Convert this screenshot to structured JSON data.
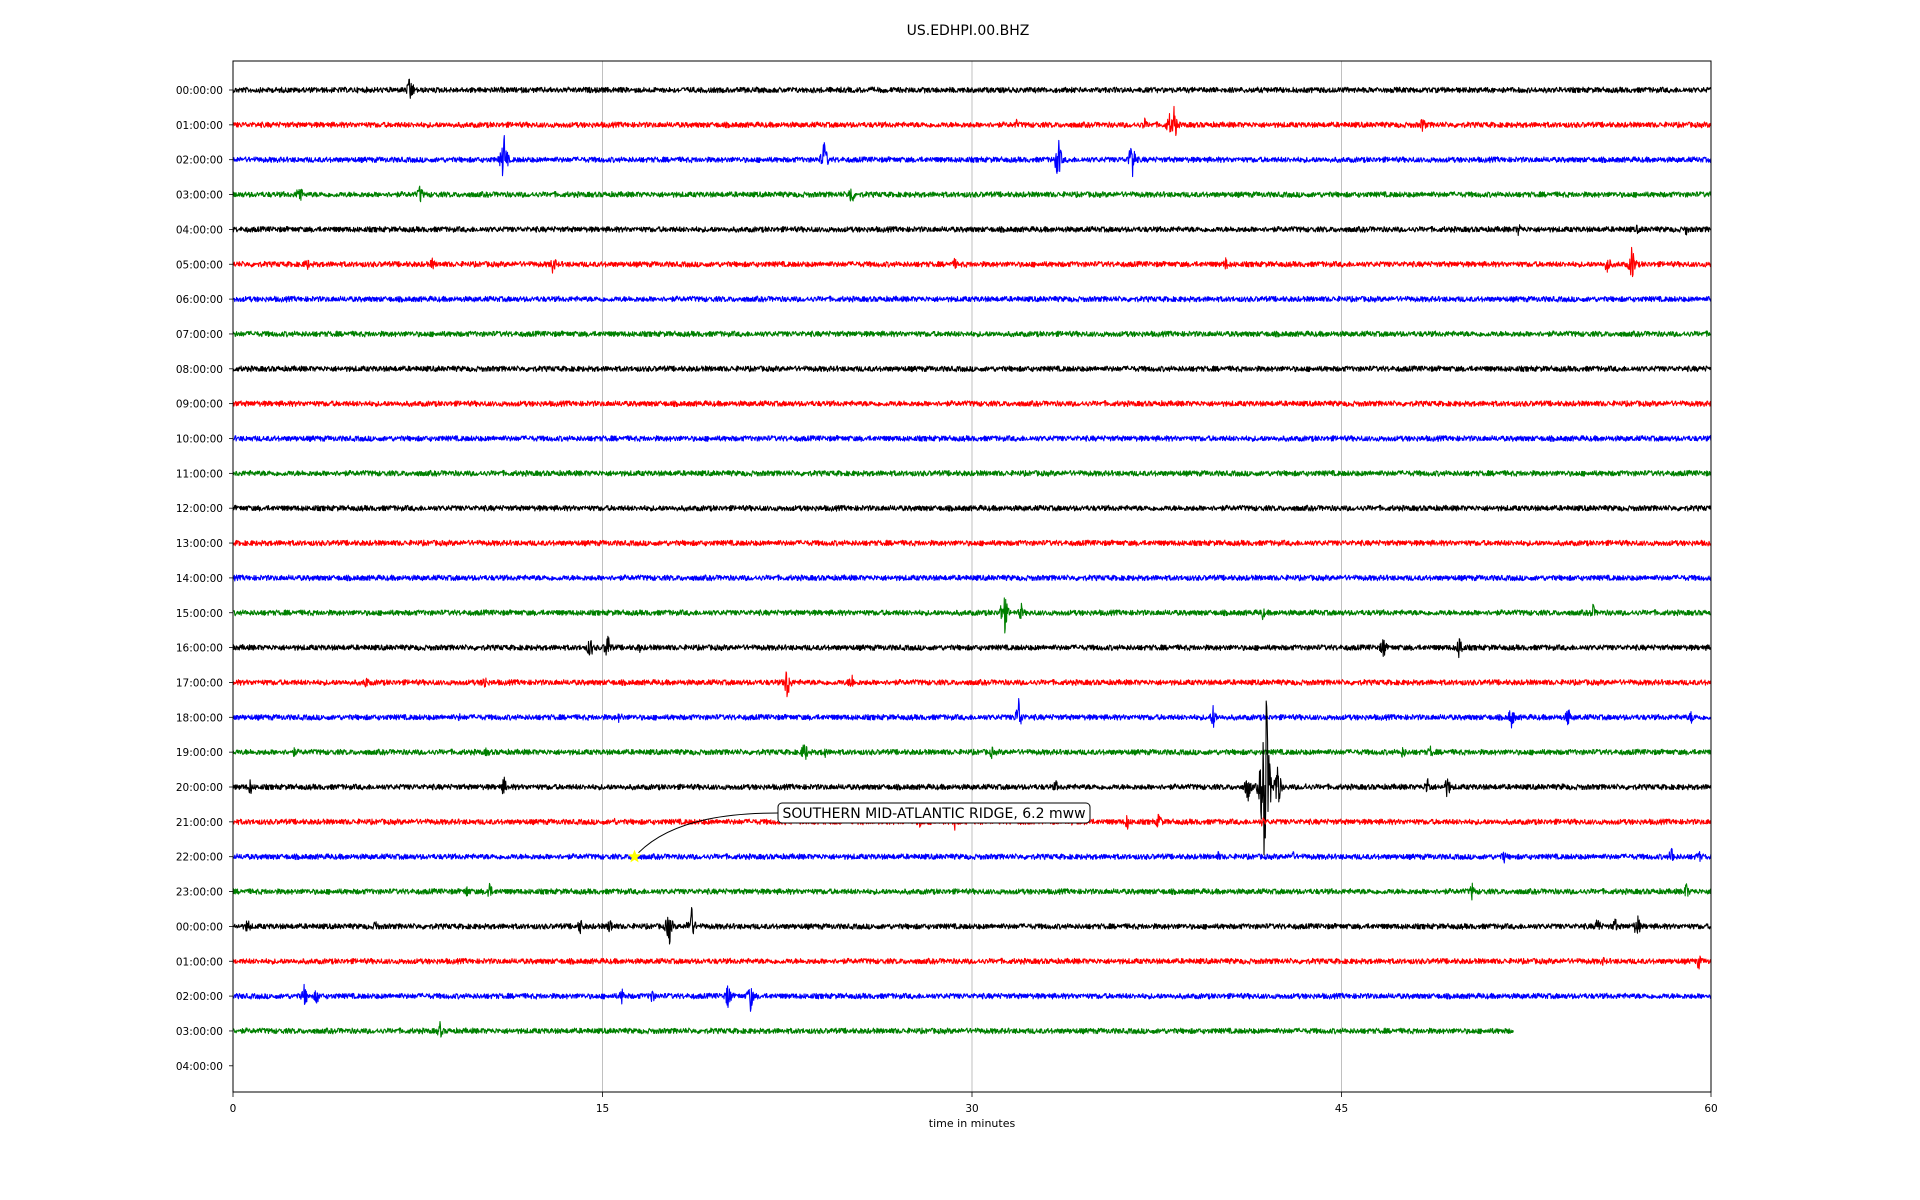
{
  "chart_data": {
    "type": "line",
    "title": "US.EDHPI.00.BHZ",
    "xlabel": "time in minutes",
    "ylabel": "",
    "xlim": [
      0,
      60
    ],
    "x_ticks": [
      "0",
      "15",
      "30",
      "45",
      "60"
    ],
    "x_tick_values": [
      0,
      15,
      30,
      45,
      60
    ],
    "grid": "vertical at 15-minute ticks",
    "trace_colors": [
      "#000000",
      "#ff0000",
      "#0000ff",
      "#008000"
    ],
    "rows": [
      {
        "label": "00:00:00",
        "end": 60,
        "events": [
          [
            7.2,
            18
          ]
        ]
      },
      {
        "label": "01:00:00",
        "end": 60,
        "events": [
          [
            38.2,
            22
          ],
          [
            38.0,
            14
          ],
          [
            37.0,
            8
          ],
          [
            48.3,
            10
          ],
          [
            31.8,
            6
          ]
        ]
      },
      {
        "label": "02:00:00",
        "end": 60,
        "events": [
          [
            11.0,
            30
          ],
          [
            24.0,
            22
          ],
          [
            33.5,
            26
          ],
          [
            36.5,
            26
          ]
        ]
      },
      {
        "label": "03:00:00",
        "end": 60,
        "events": [
          [
            2.7,
            14
          ],
          [
            7.6,
            12
          ],
          [
            25.1,
            14
          ]
        ]
      },
      {
        "label": "04:00:00",
        "end": 60,
        "events": [
          [
            52.2,
            8
          ],
          [
            57.0,
            6
          ],
          [
            59.0,
            7
          ]
        ]
      },
      {
        "label": "05:00:00",
        "end": 60,
        "events": [
          [
            3.0,
            8
          ],
          [
            8.1,
            8
          ],
          [
            13.0,
            12
          ],
          [
            29.3,
            7
          ],
          [
            40.3,
            8
          ],
          [
            55.8,
            12
          ],
          [
            56.8,
            22
          ]
        ]
      },
      {
        "label": "06:00:00",
        "end": 60,
        "events": []
      },
      {
        "label": "07:00:00",
        "end": 60,
        "events": []
      },
      {
        "label": "08:00:00",
        "end": 60,
        "events": []
      },
      {
        "label": "09:00:00",
        "end": 60,
        "events": []
      },
      {
        "label": "10:00:00",
        "end": 60,
        "events": []
      },
      {
        "label": "11:00:00",
        "end": 60,
        "events": []
      },
      {
        "label": "12:00:00",
        "end": 60,
        "events": []
      },
      {
        "label": "13:00:00",
        "end": 60,
        "events": []
      },
      {
        "label": "14:00:00",
        "end": 60,
        "events": []
      },
      {
        "label": "15:00:00",
        "end": 60,
        "events": [
          [
            31.3,
            28
          ],
          [
            32.0,
            10
          ],
          [
            41.8,
            8
          ],
          [
            55.2,
            10
          ]
        ]
      },
      {
        "label": "16:00:00",
        "end": 60,
        "events": [
          [
            14.5,
            14
          ],
          [
            15.2,
            18
          ],
          [
            16.5,
            6
          ],
          [
            46.7,
            14
          ],
          [
            49.8,
            16
          ]
        ]
      },
      {
        "label": "17:00:00",
        "end": 60,
        "events": [
          [
            5.4,
            8
          ],
          [
            10.2,
            10
          ],
          [
            22.5,
            22
          ],
          [
            25.1,
            12
          ]
        ]
      },
      {
        "label": "18:00:00",
        "end": 60,
        "events": [
          [
            9.2,
            5
          ],
          [
            15.7,
            8
          ],
          [
            31.9,
            22
          ],
          [
            39.8,
            14
          ],
          [
            51.9,
            14
          ],
          [
            54.2,
            12
          ],
          [
            59.2,
            8
          ]
        ]
      },
      {
        "label": "19:00:00",
        "end": 60,
        "events": [
          [
            2.5,
            6
          ],
          [
            10.3,
            6
          ],
          [
            23.2,
            14
          ],
          [
            24.0,
            8
          ],
          [
            30.8,
            7
          ],
          [
            47.5,
            8
          ],
          [
            48.6,
            8
          ]
        ]
      },
      {
        "label": "20:00:00",
        "end": 60,
        "events": [
          [
            0.7,
            10
          ],
          [
            11.0,
            12
          ],
          [
            33.4,
            8
          ],
          [
            41.2,
            18
          ],
          [
            41.9,
            145
          ],
          [
            42.4,
            30
          ],
          [
            43.5,
            6
          ],
          [
            48.5,
            12
          ],
          [
            49.3,
            14
          ],
          [
            54.0,
            5
          ]
        ]
      },
      {
        "label": "21:00:00",
        "end": 60,
        "events": [
          [
            15.5,
            5
          ],
          [
            27.9,
            8
          ],
          [
            29.3,
            9
          ],
          [
            34.1,
            6
          ],
          [
            36.3,
            10
          ],
          [
            37.6,
            12
          ],
          [
            41.8,
            6
          ]
        ]
      },
      {
        "label": "22:00:00",
        "end": 60,
        "events": [
          [
            40.0,
            6
          ],
          [
            43.0,
            8
          ],
          [
            51.6,
            8
          ],
          [
            58.4,
            12
          ],
          [
            59.5,
            8
          ]
        ]
      },
      {
        "label": "23:00:00",
        "end": 60,
        "events": [
          [
            9.5,
            8
          ],
          [
            10.4,
            12
          ],
          [
            50.3,
            10
          ],
          [
            59.0,
            10
          ]
        ]
      },
      {
        "label": "00:00:00",
        "end": 60,
        "events": [
          [
            0.6,
            10
          ],
          [
            5.8,
            8
          ],
          [
            14.1,
            10
          ],
          [
            15.3,
            10
          ],
          [
            17.7,
            22
          ],
          [
            18.6,
            24
          ],
          [
            55.4,
            12
          ],
          [
            56.1,
            10
          ],
          [
            57.0,
            16
          ]
        ]
      },
      {
        "label": "01:00:00",
        "end": 60,
        "events": [
          [
            55.6,
            6
          ],
          [
            59.5,
            10
          ]
        ]
      },
      {
        "label": "02:00:00",
        "end": 60,
        "events": [
          [
            2.9,
            14
          ],
          [
            3.4,
            10
          ],
          [
            15.8,
            10
          ],
          [
            17.0,
            10
          ],
          [
            20.1,
            16
          ],
          [
            21.0,
            18
          ]
        ]
      },
      {
        "label": "03:00:00",
        "end": 52.0,
        "events": [
          [
            8.4,
            10
          ]
        ]
      },
      {
        "label": "04:00:00",
        "end": 0,
        "events": []
      }
    ],
    "annotations": [
      {
        "text": "SOUTHERN MID-ATLANTIC RIDGE, 6.2 mww",
        "row": "22:00:00",
        "minute": 16.3,
        "marker": "star",
        "marker_color": "#ffff00"
      }
    ]
  }
}
